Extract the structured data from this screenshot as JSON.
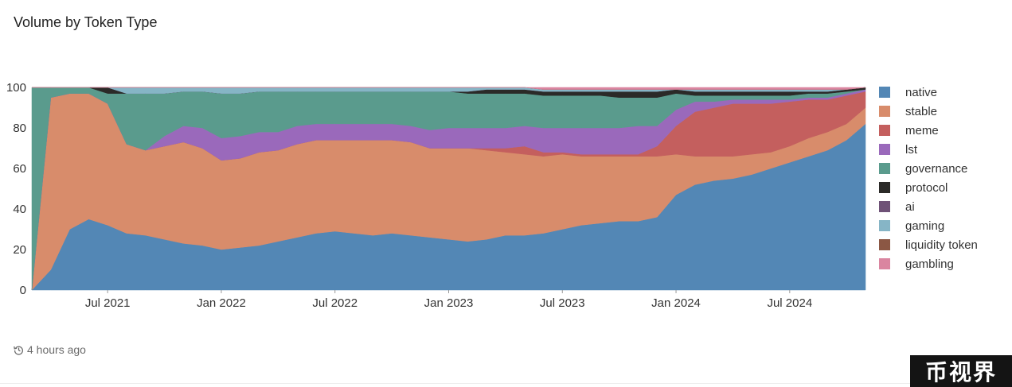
{
  "card": {
    "title": "Volume by Token Type",
    "updated": "4 hours ago"
  },
  "watermark": "币视界",
  "chart_data": {
    "type": "area",
    "stacking": "percent",
    "title": "Volume by Token Type",
    "xlabel": "",
    "ylabel": "",
    "ylim": [
      0,
      100
    ],
    "y_ticks": [
      0,
      20,
      40,
      60,
      80,
      100
    ],
    "x_ticks": [
      "Jul 2021",
      "Jan 2022",
      "Jul 2022",
      "Jan 2023",
      "Jul 2023",
      "Jan 2024",
      "Jul 2024"
    ],
    "x_range": [
      "2021-03",
      "2024-11"
    ],
    "legend_position": "right",
    "x": [
      "2021-03",
      "2021-04",
      "2021-05",
      "2021-06",
      "2021-07",
      "2021-08",
      "2021-09",
      "2021-10",
      "2021-11",
      "2021-12",
      "2022-01",
      "2022-02",
      "2022-03",
      "2022-04",
      "2022-05",
      "2022-06",
      "2022-07",
      "2022-08",
      "2022-09",
      "2022-10",
      "2022-11",
      "2022-12",
      "2023-01",
      "2023-02",
      "2023-03",
      "2023-04",
      "2023-05",
      "2023-06",
      "2023-07",
      "2023-08",
      "2023-09",
      "2023-10",
      "2023-11",
      "2023-12",
      "2024-01",
      "2024-02",
      "2024-03",
      "2024-04",
      "2024-05",
      "2024-06",
      "2024-07",
      "2024-08",
      "2024-09",
      "2024-10",
      "2024-11"
    ],
    "series": [
      {
        "name": "native",
        "color": "#5387b5",
        "values": [
          0,
          10,
          30,
          35,
          32,
          28,
          27,
          25,
          23,
          22,
          20,
          21,
          22,
          24,
          26,
          28,
          29,
          28,
          27,
          28,
          27,
          26,
          25,
          24,
          25,
          27,
          27,
          28,
          30,
          32,
          33,
          34,
          34,
          36,
          47,
          52,
          54,
          55,
          57,
          60,
          63,
          66,
          69,
          74,
          82
        ]
      },
      {
        "name": "stable",
        "color": "#d88c6b",
        "values": [
          0,
          85,
          67,
          62,
          60,
          44,
          42,
          46,
          50,
          48,
          44,
          44,
          46,
          45,
          46,
          46,
          45,
          46,
          47,
          46,
          46,
          44,
          45,
          46,
          44,
          41,
          40,
          38,
          37,
          34,
          33,
          32,
          32,
          30,
          20,
          14,
          12,
          11,
          10,
          8,
          8,
          9,
          9,
          8,
          8
        ]
      },
      {
        "name": "meme",
        "color": "#c45f5e",
        "values": [
          0,
          0,
          0,
          0,
          0,
          0,
          0,
          0,
          0,
          0,
          0,
          0,
          0,
          0,
          0,
          0,
          0,
          0,
          0,
          0,
          0,
          0,
          0,
          0,
          1,
          2,
          4,
          2,
          1,
          1,
          1,
          1,
          1,
          5,
          14,
          22,
          24,
          26,
          25,
          24,
          22,
          19,
          16,
          14,
          8
        ]
      },
      {
        "name": "lst",
        "color": "#9a69bb",
        "values": [
          0,
          0,
          0,
          0,
          0,
          0,
          0,
          5,
          8,
          10,
          11,
          11,
          10,
          9,
          9,
          8,
          8,
          8,
          8,
          8,
          8,
          9,
          10,
          10,
          10,
          10,
          10,
          12,
          12,
          13,
          13,
          13,
          14,
          10,
          8,
          5,
          3,
          2,
          2,
          2,
          1,
          1,
          1,
          1,
          1
        ]
      },
      {
        "name": "governance",
        "color": "#5a9b8d",
        "values": [
          100,
          5,
          3,
          3,
          5,
          25,
          28,
          21,
          17,
          18,
          22,
          21,
          20,
          20,
          17,
          16,
          16,
          16,
          16,
          16,
          17,
          19,
          18,
          17,
          17,
          17,
          16,
          16,
          16,
          16,
          16,
          15,
          14,
          14,
          8,
          3,
          3,
          2,
          2,
          2,
          2,
          2,
          2,
          1,
          0
        ]
      },
      {
        "name": "protocol",
        "color": "#2b2a28",
        "values": [
          0,
          0,
          0,
          0,
          3,
          0,
          0,
          0,
          0,
          0,
          0,
          0,
          0,
          0,
          0,
          0,
          0,
          0,
          0,
          0,
          0,
          0,
          0,
          1,
          2,
          2,
          2,
          2,
          2,
          2,
          2,
          3,
          3,
          3,
          2,
          2,
          2,
          2,
          2,
          2,
          2,
          1,
          1,
          1,
          1
        ]
      },
      {
        "name": "ai",
        "color": "#6f5277",
        "values": [
          0,
          0,
          0,
          0,
          0,
          0,
          0,
          0,
          0,
          0,
          0,
          0,
          0,
          0,
          0,
          0,
          0,
          0,
          0,
          0,
          0,
          0,
          0,
          0,
          0,
          0,
          0,
          0,
          0,
          0,
          0,
          0,
          0,
          0,
          0,
          0,
          0,
          0,
          0,
          0,
          0,
          0,
          0,
          0,
          0
        ]
      },
      {
        "name": "gaming",
        "color": "#86b5c6",
        "values": [
          0,
          0,
          0,
          0,
          0,
          3,
          3,
          3,
          2,
          2,
          3,
          3,
          2,
          2,
          2,
          2,
          2,
          2,
          2,
          2,
          2,
          2,
          2,
          2,
          1,
          1,
          1,
          1,
          1,
          1,
          1,
          1,
          1,
          1,
          0,
          1,
          1,
          1,
          1,
          1,
          1,
          1,
          1,
          0,
          0
        ]
      },
      {
        "name": "liquidity token",
        "color": "#8b5744",
        "values": [
          0,
          0,
          0,
          0,
          0,
          0,
          0,
          0,
          0,
          0,
          0,
          0,
          0,
          0,
          0,
          0,
          0,
          0,
          0,
          0,
          0,
          0,
          0,
          0,
          0,
          0,
          0,
          0,
          0,
          0,
          0,
          0,
          0,
          0,
          0,
          0,
          0,
          0,
          0,
          0,
          0,
          0,
          0,
          0,
          0
        ]
      },
      {
        "name": "gambling",
        "color": "#da85a0",
        "values": [
          0,
          0,
          0,
          0,
          0,
          0,
          0,
          0,
          0,
          0,
          0,
          0,
          0,
          0,
          0,
          0,
          0,
          0,
          0,
          0,
          0,
          0,
          0,
          0,
          0,
          0,
          0,
          1,
          1,
          1,
          1,
          1,
          1,
          1,
          1,
          1,
          1,
          1,
          1,
          1,
          1,
          1,
          1,
          1,
          0
        ]
      }
    ]
  }
}
